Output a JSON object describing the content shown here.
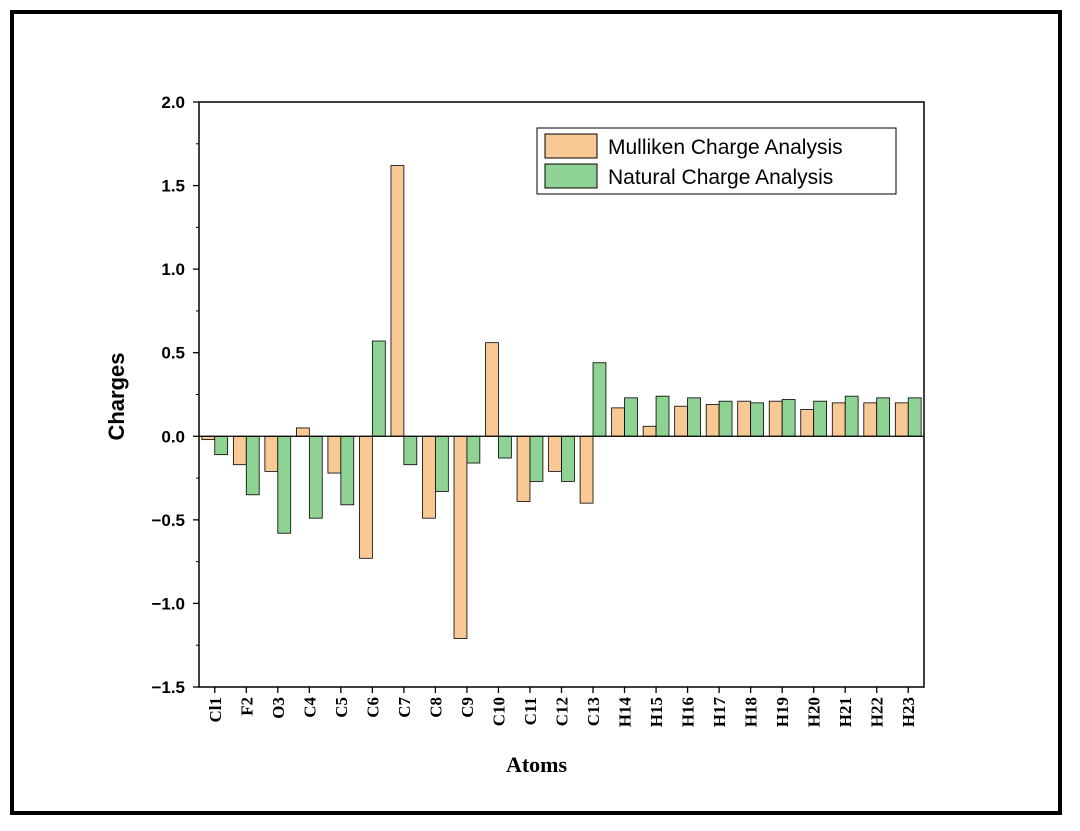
{
  "chart_data": {
    "type": "bar",
    "xlabel": "Atoms",
    "ylabel": "Charges",
    "ylim": [
      -1.5,
      2.0
    ],
    "yticks": [
      "2.0",
      "1.5",
      "1.0",
      "0.5",
      "0.0",
      "−0.5",
      "−1.0",
      "−1.5"
    ],
    "ytick_values": [
      2.0,
      1.5,
      1.0,
      0.5,
      0.0,
      -0.5,
      -1.0,
      -1.5
    ],
    "legend_position": "top-right",
    "categories": [
      "Cl1",
      "F2",
      "O3",
      "C4",
      "C5",
      "C6",
      "C7",
      "C8",
      "C9",
      "C10",
      "C11",
      "C12",
      "C13",
      "H14",
      "H15",
      "H16",
      "H17",
      "H18",
      "H19",
      "H20",
      "H21",
      "H22",
      "H23"
    ],
    "series": [
      {
        "name": "Mulliken Charge Analysis",
        "color": "#f9c995",
        "values": [
          -0.02,
          -0.17,
          -0.21,
          0.05,
          -0.22,
          -0.73,
          1.62,
          -0.49,
          -1.21,
          0.56,
          -0.39,
          -0.21,
          -0.4,
          0.17,
          0.06,
          0.18,
          0.19,
          0.21,
          0.21,
          0.16,
          0.2,
          0.2,
          0.2
        ]
      },
      {
        "name": "Natural Charge Analysis",
        "color": "#8fd394",
        "values": [
          -0.11,
          -0.35,
          -0.58,
          -0.49,
          -0.41,
          0.57,
          -0.17,
          -0.33,
          -0.16,
          -0.13,
          -0.27,
          -0.27,
          0.44,
          0.23,
          0.24,
          0.23,
          0.21,
          0.2,
          0.22,
          0.21,
          0.24,
          0.23,
          0.23
        ]
      }
    ]
  }
}
